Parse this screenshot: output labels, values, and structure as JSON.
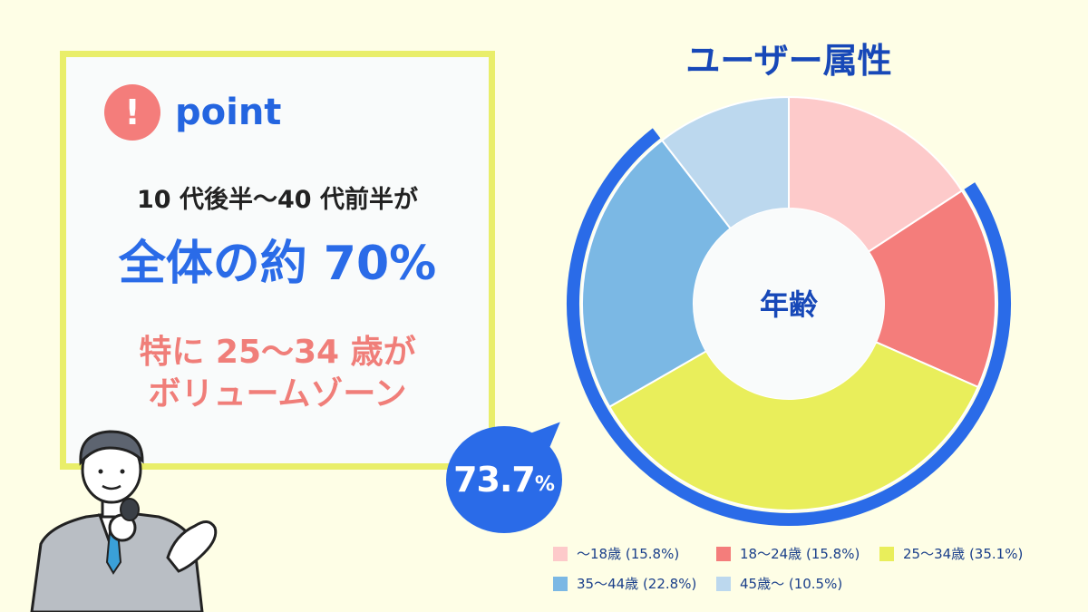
{
  "point": {
    "icon_char": "!",
    "label": "point",
    "line1": "10 代後半〜40 代前半が",
    "line2": "全体の約 70%",
    "line3a": "特に 25〜34 歳が",
    "line3b": "ボリュームゾーン"
  },
  "colors": {
    "accent_blue": "#2a6be8",
    "accent_red": "#f47d7b",
    "box_border": "#e9ee6a"
  },
  "chart_data": {
    "type": "pie",
    "title": "ユーザー属性",
    "center_label": "年齢",
    "slices": [
      {
        "label": "〜18歳 (15.8%)",
        "value": 15.8,
        "color": "#fdcaca"
      },
      {
        "label": "18〜24歳 (15.8%)",
        "value": 15.8,
        "color": "#f47d7b"
      },
      {
        "label": "25〜34歳 (35.1%)",
        "value": 35.1,
        "color": "#e9ee5b"
      },
      {
        "label": "35〜44歳 (22.8%)",
        "value": 22.8,
        "color": "#7bb8e4"
      },
      {
        "label": "45歳〜 (10.5%)",
        "value": 10.5,
        "color": "#bcd8ee"
      }
    ],
    "highlight": {
      "value_label": "73.7",
      "unit": "%",
      "covers_slices": [
        1,
        2,
        3
      ]
    }
  }
}
